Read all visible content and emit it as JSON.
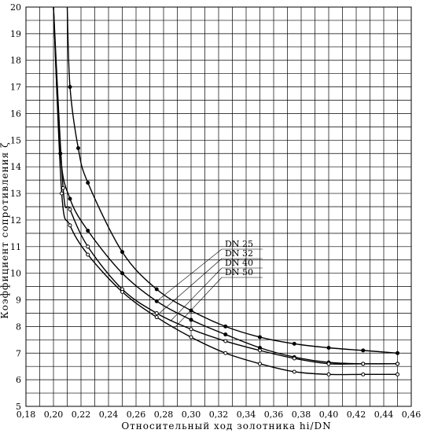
{
  "chart_data": {
    "type": "line",
    "title": "",
    "xlabel": "Относительный ход золотника hi/DN",
    "ylabel": "Коэффициент сопротивления ζ",
    "xlim": [
      0.18,
      0.46
    ],
    "ylim": [
      5,
      20
    ],
    "x_ticks": [
      "0,18",
      "0,20",
      "0,22",
      "0,24",
      "0,26",
      "0,28",
      "0,30",
      "0,32",
      "0,34",
      "0,36",
      "0,38",
      "0,40",
      "0,42",
      "0,44",
      "0,46"
    ],
    "y_ticks": [
      "5",
      "6",
      "7",
      "8",
      "9",
      "10",
      "11",
      "12",
      "13",
      "14",
      "15",
      "16",
      "17",
      "18",
      "19",
      "20"
    ],
    "grid": true,
    "legend_placement": "center-right",
    "series": [
      {
        "name": "DN 25",
        "marker": "filled",
        "x": [
          0.21,
          0.212,
          0.218,
          0.225,
          0.25,
          0.275,
          0.3,
          0.325,
          0.35,
          0.375,
          0.4,
          0.425,
          0.45
        ],
        "y": [
          20,
          17,
          14.7,
          13.4,
          10.8,
          9.4,
          8.6,
          8.0,
          7.6,
          7.35,
          7.2,
          7.1,
          7.0
        ]
      },
      {
        "name": "DN 32",
        "marker": "filled",
        "x": [
          0.2,
          0.205,
          0.212,
          0.225,
          0.25,
          0.275,
          0.3,
          0.325,
          0.35,
          0.375,
          0.4,
          0.425,
          0.45
        ],
        "y": [
          20,
          14.5,
          12.8,
          11.6,
          10.0,
          8.95,
          8.25,
          7.7,
          7.2,
          6.85,
          6.65,
          6.6,
          6.6
        ]
      },
      {
        "name": "DN 40",
        "marker": "hollow",
        "x": [
          0.2,
          0.207,
          0.212,
          0.225,
          0.25,
          0.275,
          0.3,
          0.325,
          0.35,
          0.375,
          0.4,
          0.425,
          0.45
        ],
        "y": [
          20,
          13.2,
          12.4,
          11.0,
          9.4,
          8.5,
          7.9,
          7.45,
          7.1,
          6.8,
          6.6,
          6.6,
          6.6
        ]
      },
      {
        "name": "DN 50",
        "marker": "hollow",
        "x": [
          0.2,
          0.206,
          0.212,
          0.225,
          0.25,
          0.275,
          0.3,
          0.325,
          0.35,
          0.375,
          0.4,
          0.425,
          0.45
        ],
        "y": [
          20,
          13.0,
          11.8,
          10.7,
          9.3,
          8.35,
          7.6,
          7.0,
          6.6,
          6.3,
          6.2,
          6.2,
          6.2
        ]
      }
    ]
  }
}
